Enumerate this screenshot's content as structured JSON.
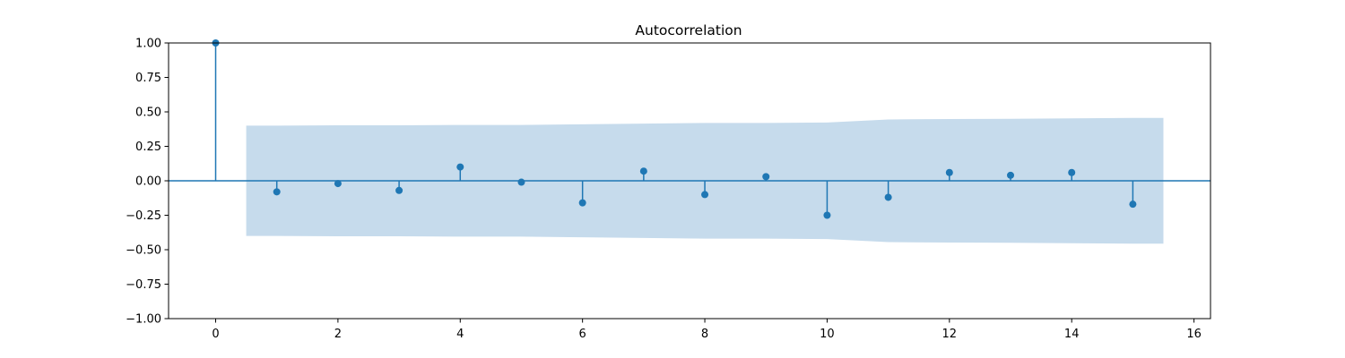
{
  "chart_data": {
    "type": "stem",
    "title": "Autocorrelation",
    "xlabel": "",
    "ylabel": "",
    "xlim": [
      -0.77,
      16.27
    ],
    "ylim": [
      -1.0,
      1.0
    ],
    "xticks": [
      0,
      2,
      4,
      6,
      8,
      10,
      12,
      14,
      16
    ],
    "xtick_labels": [
      "0",
      "2",
      "4",
      "6",
      "8",
      "10",
      "12",
      "14",
      "16"
    ],
    "yticks": [
      -1.0,
      -0.75,
      -0.5,
      -0.25,
      0.0,
      0.25,
      0.5,
      0.75,
      1.0
    ],
    "ytick_labels": [
      "−1.00",
      "−0.75",
      "−0.50",
      "−0.25",
      "0.00",
      "0.25",
      "0.50",
      "0.75",
      "1.00"
    ],
    "grid": false,
    "colors": {
      "stem": "#1f77b4",
      "band": "#c6dbec"
    },
    "lags": [
      0,
      1,
      2,
      3,
      4,
      5,
      6,
      7,
      8,
      9,
      10,
      11,
      12,
      13,
      14,
      15
    ],
    "acf": [
      1.0,
      -0.08,
      -0.02,
      -0.07,
      0.1,
      -0.01,
      -0.16,
      0.07,
      -0.1,
      0.03,
      -0.25,
      -0.12,
      0.06,
      0.04,
      0.06,
      -0.17
    ],
    "confidence_band": {
      "x": [
        0.5,
        1,
        2,
        3,
        4,
        5,
        6,
        7,
        8,
        9,
        10,
        11,
        12,
        13,
        14,
        15,
        15.5
      ],
      "upper": [
        0.4,
        0.4,
        0.403,
        0.403,
        0.405,
        0.405,
        0.41,
        0.415,
        0.42,
        0.42,
        0.423,
        0.445,
        0.448,
        0.45,
        0.453,
        0.456,
        0.456
      ],
      "lower": [
        -0.4,
        -0.4,
        -0.403,
        -0.403,
        -0.405,
        -0.405,
        -0.41,
        -0.415,
        -0.42,
        -0.42,
        -0.423,
        -0.445,
        -0.448,
        -0.45,
        -0.453,
        -0.456,
        -0.456
      ]
    }
  }
}
